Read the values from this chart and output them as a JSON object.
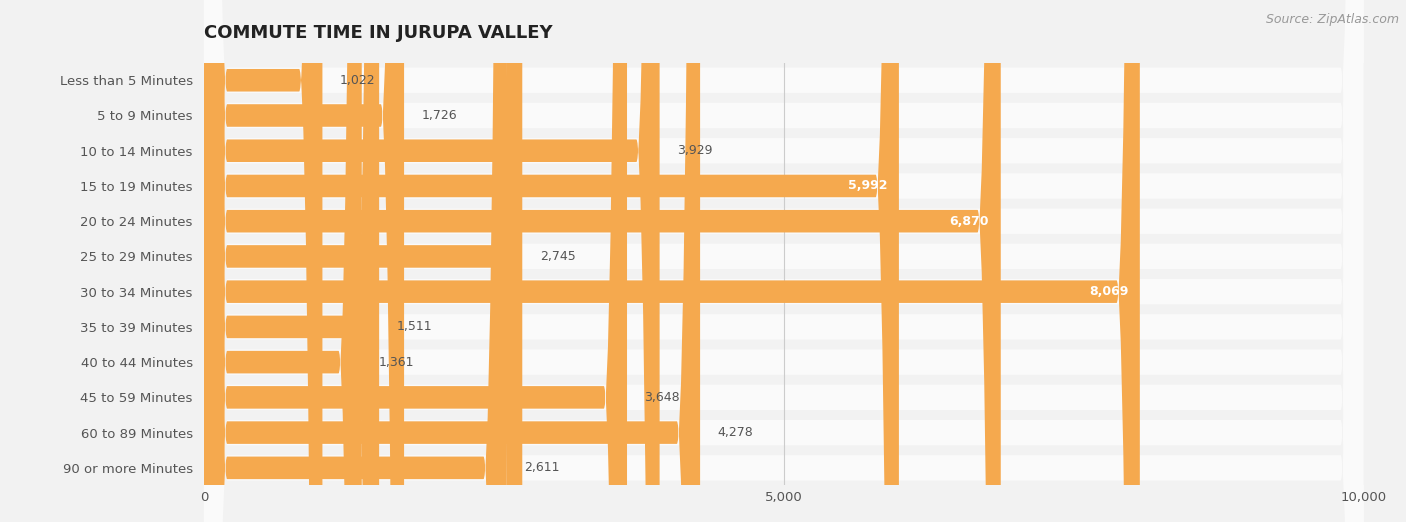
{
  "title": "COMMUTE TIME IN JURUPA VALLEY",
  "source_text": "Source: ZipAtlas.com",
  "categories": [
    "Less than 5 Minutes",
    "5 to 9 Minutes",
    "10 to 14 Minutes",
    "15 to 19 Minutes",
    "20 to 24 Minutes",
    "25 to 29 Minutes",
    "30 to 34 Minutes",
    "35 to 39 Minutes",
    "40 to 44 Minutes",
    "45 to 59 Minutes",
    "60 to 89 Minutes",
    "90 or more Minutes"
  ],
  "values": [
    1022,
    1726,
    3929,
    5992,
    6870,
    2745,
    8069,
    1511,
    1361,
    3648,
    4278,
    2611
  ],
  "bar_color": "#f5a94e",
  "bg_color": "#f2f2f2",
  "row_bg_color": "#fafafa",
  "title_color": "#222222",
  "label_color": "#555555",
  "value_color_inside": "#ffffff",
  "value_color_outside": "#555555",
  "source_color": "#999999",
  "xlim_max": 10000,
  "xticks": [
    0,
    5000,
    10000
  ],
  "xtick_labels": [
    "0",
    "5,000",
    "10,000"
  ],
  "value_inside_threshold": 4500,
  "title_fontsize": 13,
  "label_fontsize": 9.5,
  "value_fontsize": 9,
  "source_fontsize": 9
}
